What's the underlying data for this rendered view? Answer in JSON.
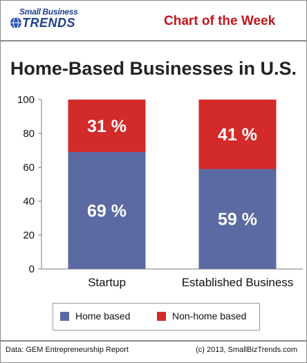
{
  "header": {
    "logo_line1": "Small Business",
    "logo_line2": "TRENDS",
    "title": "Chart of the Week"
  },
  "footer": {
    "source": "Data:  GEM Entrepreneurship Report",
    "copyright": "(c) 2013, SmallBizTrends.com"
  },
  "colors": {
    "home_based": "#5b6aa2",
    "non_home_based": "#d32a2a",
    "header_title": "#c0161c",
    "logo": "#1f3f8f"
  },
  "chart_data": {
    "type": "bar",
    "stacked": true,
    "title": "Home-Based Businesses in U.S.",
    "categories": [
      "Startup",
      "Established Business"
    ],
    "series": [
      {
        "name": "Home based",
        "values": [
          69,
          59
        ],
        "labels": [
          "69 %",
          "59 %"
        ],
        "color": "#5b6aa2"
      },
      {
        "name": "Non-home based",
        "values": [
          31,
          41
        ],
        "labels": [
          "31 %",
          "41 %"
        ],
        "color": "#d32a2a"
      }
    ],
    "ylim": [
      0,
      100
    ],
    "yticks": [
      "0",
      "20",
      "40",
      "60",
      "80",
      "100"
    ],
    "grid": false,
    "legend": "bottom"
  }
}
